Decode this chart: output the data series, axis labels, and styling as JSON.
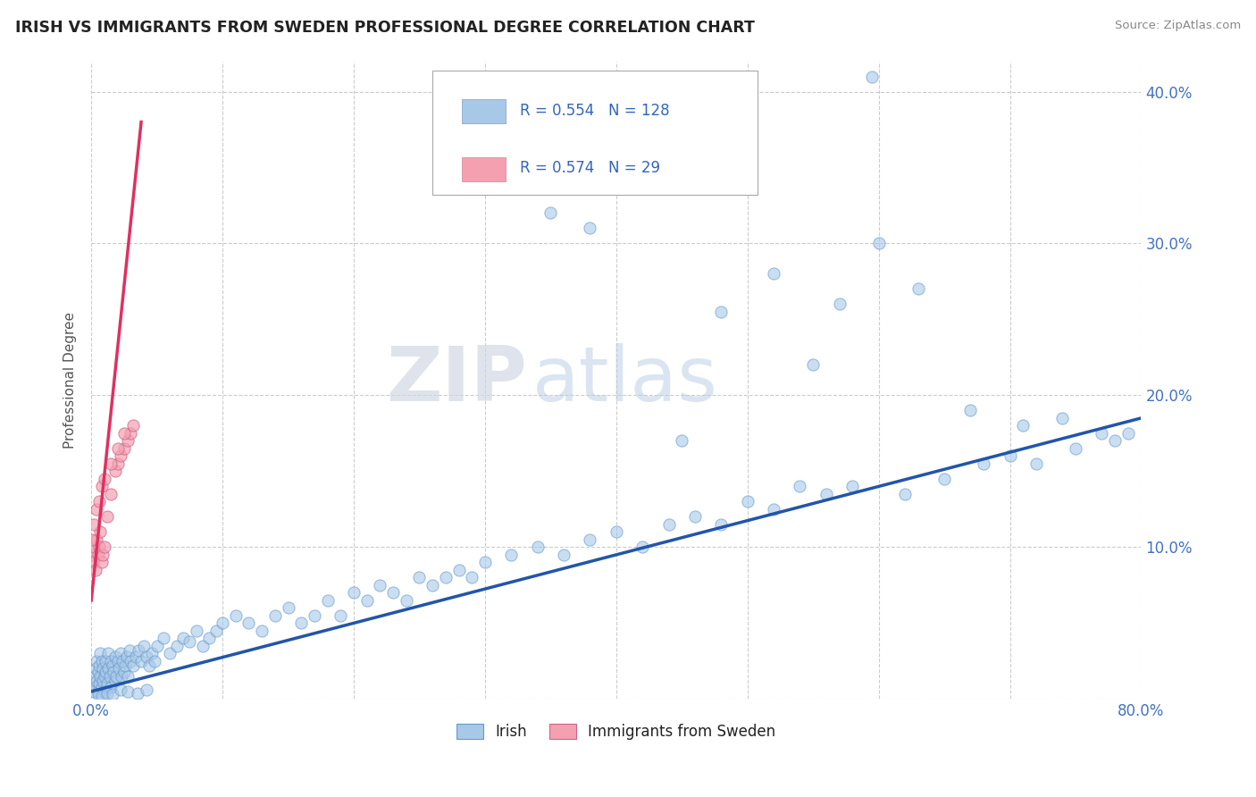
{
  "title": "IRISH VS IMMIGRANTS FROM SWEDEN PROFESSIONAL DEGREE CORRELATION CHART",
  "source": "Source: ZipAtlas.com",
  "ylabel": "Professional Degree",
  "xlim": [
    0,
    0.8
  ],
  "ylim": [
    0,
    0.42
  ],
  "irish_R": 0.554,
  "irish_N": 128,
  "sweden_R": 0.574,
  "sweden_N": 29,
  "irish_color": "#a8c8e8",
  "ireland_line_color": "#2255aa",
  "sweden_color": "#f4a0b0",
  "sweden_line_color": "#e03060",
  "watermark_zip": "ZIP",
  "watermark_atlas": "atlas",
  "background_color": "#ffffff",
  "irish_x": [
    0.001,
    0.002,
    0.002,
    0.003,
    0.003,
    0.004,
    0.004,
    0.005,
    0.005,
    0.006,
    0.006,
    0.007,
    0.007,
    0.008,
    0.008,
    0.009,
    0.009,
    0.01,
    0.01,
    0.011,
    0.011,
    0.012,
    0.013,
    0.013,
    0.014,
    0.015,
    0.015,
    0.016,
    0.017,
    0.018,
    0.018,
    0.019,
    0.02,
    0.021,
    0.022,
    0.023,
    0.024,
    0.025,
    0.026,
    0.027,
    0.028,
    0.029,
    0.03,
    0.032,
    0.034,
    0.036,
    0.038,
    0.04,
    0.042,
    0.044,
    0.046,
    0.048,
    0.05,
    0.055,
    0.06,
    0.065,
    0.07,
    0.075,
    0.08,
    0.085,
    0.09,
    0.095,
    0.1,
    0.11,
    0.12,
    0.13,
    0.14,
    0.15,
    0.16,
    0.17,
    0.18,
    0.19,
    0.2,
    0.21,
    0.22,
    0.23,
    0.24,
    0.25,
    0.26,
    0.27,
    0.28,
    0.29,
    0.3,
    0.32,
    0.34,
    0.36,
    0.38,
    0.4,
    0.42,
    0.44,
    0.46,
    0.48,
    0.5,
    0.52,
    0.54,
    0.56,
    0.58,
    0.62,
    0.65,
    0.68,
    0.7,
    0.72,
    0.75,
    0.78,
    0.79,
    0.55,
    0.45,
    0.35,
    0.38,
    0.42,
    0.48,
    0.52,
    0.57,
    0.6,
    0.63,
    0.67,
    0.71,
    0.74,
    0.77,
    0.595,
    0.005,
    0.008,
    0.012,
    0.016,
    0.022,
    0.028,
    0.035,
    0.042
  ],
  "irish_y": [
    0.01,
    0.015,
    0.005,
    0.02,
    0.008,
    0.012,
    0.025,
    0.018,
    0.005,
    0.022,
    0.01,
    0.015,
    0.03,
    0.008,
    0.025,
    0.012,
    0.02,
    0.015,
    0.005,
    0.018,
    0.025,
    0.01,
    0.02,
    0.03,
    0.015,
    0.025,
    0.008,
    0.022,
    0.018,
    0.012,
    0.028,
    0.015,
    0.025,
    0.02,
    0.03,
    0.015,
    0.025,
    0.018,
    0.022,
    0.028,
    0.015,
    0.032,
    0.025,
    0.022,
    0.028,
    0.032,
    0.025,
    0.035,
    0.028,
    0.022,
    0.03,
    0.025,
    0.035,
    0.04,
    0.03,
    0.035,
    0.04,
    0.038,
    0.045,
    0.035,
    0.04,
    0.045,
    0.05,
    0.055,
    0.05,
    0.045,
    0.055,
    0.06,
    0.05,
    0.055,
    0.065,
    0.055,
    0.07,
    0.065,
    0.075,
    0.07,
    0.065,
    0.08,
    0.075,
    0.08,
    0.085,
    0.08,
    0.09,
    0.095,
    0.1,
    0.095,
    0.105,
    0.11,
    0.1,
    0.115,
    0.12,
    0.115,
    0.13,
    0.125,
    0.14,
    0.135,
    0.14,
    0.135,
    0.145,
    0.155,
    0.16,
    0.155,
    0.165,
    0.17,
    0.175,
    0.22,
    0.17,
    0.32,
    0.31,
    0.35,
    0.255,
    0.28,
    0.26,
    0.3,
    0.27,
    0.19,
    0.18,
    0.185,
    0.175,
    0.41,
    0.003,
    0.002,
    0.004,
    0.003,
    0.006,
    0.005,
    0.004,
    0.006
  ],
  "sweden_x": [
    0.0,
    0.001,
    0.002,
    0.003,
    0.004,
    0.005,
    0.006,
    0.007,
    0.008,
    0.009,
    0.01,
    0.012,
    0.015,
    0.018,
    0.02,
    0.022,
    0.025,
    0.028,
    0.03,
    0.032,
    0.0,
    0.002,
    0.004,
    0.006,
    0.008,
    0.01,
    0.015,
    0.02,
    0.025
  ],
  "sweden_y": [
    0.095,
    0.09,
    0.1,
    0.085,
    0.105,
    0.095,
    0.1,
    0.11,
    0.09,
    0.095,
    0.1,
    0.12,
    0.135,
    0.15,
    0.155,
    0.16,
    0.165,
    0.17,
    0.175,
    0.18,
    0.105,
    0.115,
    0.125,
    0.13,
    0.14,
    0.145,
    0.155,
    0.165,
    0.175
  ],
  "ireland_line_x": [
    0.0,
    0.8
  ],
  "ireland_line_y": [
    0.005,
    0.185
  ],
  "sweden_line_x": [
    0.0,
    0.038
  ],
  "sweden_line_y": [
    0.065,
    0.38
  ]
}
